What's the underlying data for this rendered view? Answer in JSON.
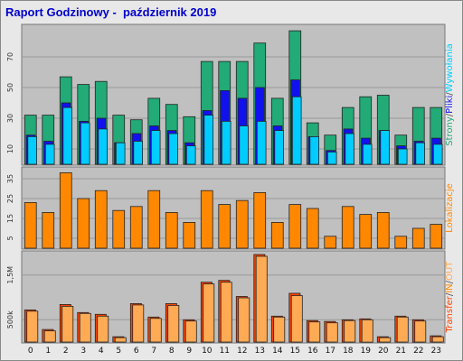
{
  "title": "Raport Godzinowy -  październik 2019",
  "colors": {
    "strony": "#22aa77",
    "pliki": "#1111ee",
    "wywolania": "#00ccff",
    "lokalizacje": "#ff8800",
    "transfer_in": "#ff4400",
    "transfer_out": "#ffaa55",
    "panel_bg": "#c0c0c0",
    "frame_bg": "#e8e8e8"
  },
  "chart_data": [
    {
      "type": "bar",
      "panel": "visits",
      "categories": [
        "0",
        "1",
        "2",
        "3",
        "4",
        "5",
        "6",
        "7",
        "8",
        "9",
        "10",
        "11",
        "12",
        "13",
        "14",
        "15",
        "16",
        "17",
        "18",
        "19",
        "20",
        "21",
        "22",
        "23"
      ],
      "ylim": [
        0,
        90
      ],
      "yticks": [
        10,
        30,
        50,
        70
      ],
      "ytick_labels": [
        "10",
        "30",
        "50",
        "70"
      ],
      "ylabel_parts": [
        "Strony",
        "Pliki",
        "Wywołania"
      ],
      "ylabel_seps": [
        "/",
        "/"
      ],
      "series": [
        {
          "name": "Strony",
          "values": [
            32,
            32,
            57,
            52,
            54,
            32,
            29,
            43,
            39,
            31,
            67,
            67,
            67,
            79,
            43,
            87,
            27,
            19,
            37,
            44,
            45,
            19,
            37,
            37
          ]
        },
        {
          "name": "Pliki",
          "values": [
            19,
            15,
            40,
            28,
            30,
            14,
            20,
            25,
            22,
            14,
            35,
            48,
            43,
            50,
            25,
            55,
            18,
            9,
            23,
            17,
            22,
            12,
            15,
            17
          ]
        },
        {
          "name": "Wywołania",
          "values": [
            18,
            13,
            37,
            27,
            23,
            14,
            15,
            22,
            20,
            12,
            32,
            28,
            25,
            28,
            22,
            44,
            18,
            8,
            20,
            13,
            22,
            10,
            14,
            13
          ]
        }
      ]
    },
    {
      "type": "bar",
      "panel": "locations",
      "categories": [
        "0",
        "1",
        "2",
        "3",
        "4",
        "5",
        "6",
        "7",
        "8",
        "9",
        "10",
        "11",
        "12",
        "13",
        "14",
        "15",
        "16",
        "17",
        "18",
        "19",
        "20",
        "21",
        "22",
        "23"
      ],
      "ylim": [
        0,
        40
      ],
      "yticks": [
        5,
        15,
        25,
        35
      ],
      "ytick_labels": [
        "5",
        "15",
        "25",
        "35"
      ],
      "ylabel": "Lokalizacje",
      "series": [
        {
          "name": "Lokalizacje",
          "values": [
            23,
            18,
            38,
            25,
            29,
            19,
            21,
            29,
            18,
            13,
            29,
            22,
            24,
            28,
            13,
            22,
            20,
            6,
            21,
            17,
            18,
            6,
            10,
            12
          ]
        }
      ]
    },
    {
      "type": "bar",
      "panel": "transfer",
      "categories": [
        "0",
        "1",
        "2",
        "3",
        "4",
        "5",
        "6",
        "7",
        "8",
        "9",
        "10",
        "11",
        "12",
        "13",
        "14",
        "15",
        "16",
        "17",
        "18",
        "19",
        "20",
        "21",
        "22",
        "23"
      ],
      "ylim": [
        0,
        2000
      ],
      "yticks": [
        500,
        1500
      ],
      "ytick_labels": [
        "500k",
        "1,5M"
      ],
      "ylabel_parts": [
        "Transfer",
        "IN",
        "OUT"
      ],
      "ylabel_seps": [
        "/",
        "/"
      ],
      "series": [
        {
          "name": "IN",
          "values": [
            720,
            280,
            840,
            660,
            620,
            120,
            860,
            560,
            860,
            500,
            1340,
            1380,
            1020,
            1960,
            580,
            1090,
            480,
            460,
            500,
            520,
            120,
            580,
            500,
            140
          ]
        },
        {
          "name": "OUT",
          "values": [
            690,
            250,
            800,
            640,
            580,
            100,
            830,
            530,
            820,
            470,
            1300,
            1340,
            990,
            1920,
            560,
            1040,
            450,
            430,
            480,
            500,
            100,
            560,
            470,
            120
          ]
        }
      ]
    }
  ]
}
